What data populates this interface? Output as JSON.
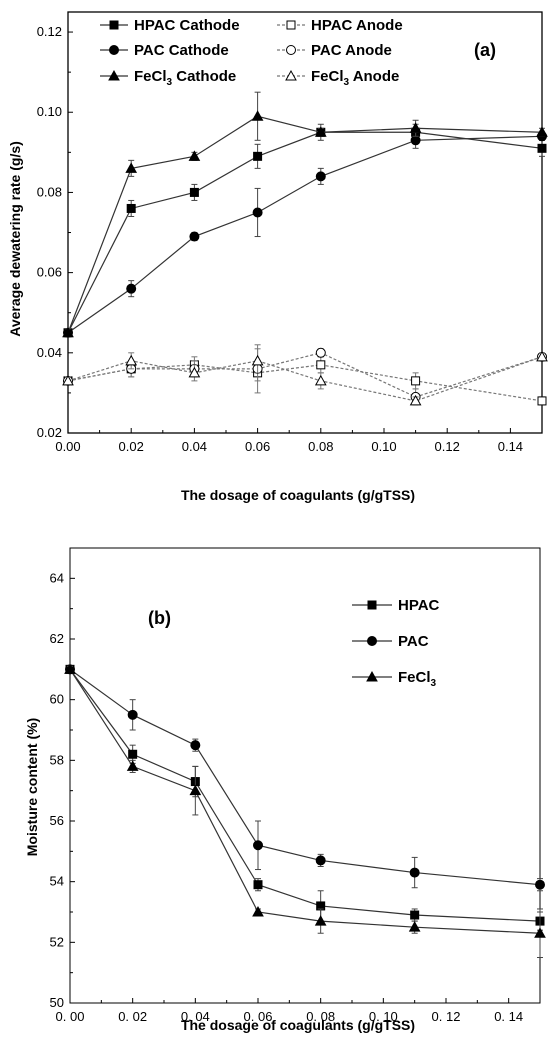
{
  "chart_data": [
    {
      "type": "line",
      "panel_label": "(a)",
      "xlabel": "The dosage of coagulants (g/gTSS)",
      "ylabel": "Average dewatering rate (g/s)",
      "xlim": [
        0.0,
        0.15
      ],
      "ylim": [
        0.02,
        0.125
      ],
      "x_ticks": [
        "0.00",
        "0.02",
        "0.04",
        "0.06",
        "0.08",
        "0.10",
        "0.12",
        "0.14"
      ],
      "y_ticks": [
        "0.02",
        "0.04",
        "0.06",
        "0.08",
        "0.10",
        "0.12"
      ],
      "grid": false,
      "legend_placement": "top",
      "x": [
        0.0,
        0.02,
        0.04,
        0.06,
        0.08,
        0.11,
        0.15
      ],
      "series": [
        {
          "name": "HPAC Cathode",
          "marker": "square",
          "filled": true,
          "dashed": false,
          "values": [
            0.045,
            0.076,
            0.08,
            0.089,
            0.095,
            0.095,
            0.091
          ],
          "errors": [
            0.001,
            0.002,
            0.002,
            0.003,
            0.002,
            0.002,
            0.002
          ]
        },
        {
          "name": "PAC  Cathode",
          "marker": "circle",
          "filled": true,
          "dashed": false,
          "values": [
            0.045,
            0.056,
            0.069,
            0.075,
            0.084,
            0.093,
            0.094
          ],
          "errors": [
            0.001,
            0.002,
            0.001,
            0.006,
            0.002,
            0.002,
            0.001
          ]
        },
        {
          "name": "FeCl3 Cathode",
          "marker": "triangle",
          "filled": true,
          "dashed": false,
          "values": [
            0.045,
            0.086,
            0.089,
            0.099,
            0.095,
            0.096,
            0.095
          ],
          "errors": [
            0.001,
            0.002,
            0.001,
            0.006,
            0.001,
            0.002,
            0.001
          ]
        },
        {
          "name": "HPAC  Anode",
          "marker": "square",
          "filled": false,
          "dashed": true,
          "values": [
            0.033,
            0.036,
            0.037,
            0.035,
            0.037,
            0.033,
            0.028
          ],
          "errors": [
            0.001,
            0.002,
            0.002,
            0.002,
            0.002,
            0.002,
            0.001
          ]
        },
        {
          "name": "PAC    Anode",
          "marker": "circle",
          "filled": false,
          "dashed": true,
          "values": [
            0.033,
            0.036,
            0.036,
            0.036,
            0.04,
            0.029,
            0.039
          ],
          "errors": [
            0.001,
            0.002,
            0.002,
            0.006,
            0.001,
            0.002,
            0.001
          ]
        },
        {
          "name": "FeCl3  Anode",
          "marker": "triangle",
          "filled": false,
          "dashed": true,
          "values": [
            0.033,
            0.038,
            0.035,
            0.038,
            0.033,
            0.028,
            0.039
          ],
          "errors": [
            0.001,
            0.002,
            0.002,
            0.003,
            0.002,
            0.001,
            0.001
          ]
        }
      ]
    },
    {
      "type": "line",
      "panel_label": "(b)",
      "xlabel": "The dosage of coagulants (g/gTSS)",
      "ylabel": "Moisture content  (%)",
      "xlim": [
        0.0,
        0.15
      ],
      "ylim": [
        50,
        65
      ],
      "x_ticks": [
        "0. 00",
        "0. 02",
        "0. 04",
        "0. 06",
        "0. 08",
        "0. 10",
        "0. 12",
        "0. 14"
      ],
      "y_ticks": [
        "50",
        "52",
        "54",
        "56",
        "58",
        "60",
        "62",
        "64"
      ],
      "grid": false,
      "legend_placement": "top-right",
      "x": [
        0.0,
        0.02,
        0.04,
        0.06,
        0.08,
        0.11,
        0.15
      ],
      "series": [
        {
          "name": "HPAC",
          "marker": "square",
          "filled": true,
          "dashed": false,
          "values": [
            61.0,
            58.2,
            57.3,
            53.9,
            53.2,
            52.9,
            52.7
          ],
          "errors": [
            0.1,
            0.3,
            0.5,
            0.2,
            0.5,
            0.2,
            0.3
          ]
        },
        {
          "name": "PAC",
          "marker": "circle",
          "filled": true,
          "dashed": false,
          "values": [
            61.0,
            59.5,
            58.5,
            55.2,
            54.7,
            54.3,
            53.9
          ],
          "errors": [
            0.1,
            0.5,
            0.2,
            0.8,
            0.2,
            0.5,
            0.2
          ]
        },
        {
          "name": "FeCl3",
          "marker": "triangle",
          "filled": true,
          "dashed": false,
          "values": [
            61.0,
            57.8,
            57.0,
            53.0,
            52.7,
            52.5,
            52.3
          ],
          "errors": [
            0.1,
            0.2,
            0.8,
            0.1,
            0.4,
            0.2,
            0.8
          ]
        }
      ]
    }
  ]
}
